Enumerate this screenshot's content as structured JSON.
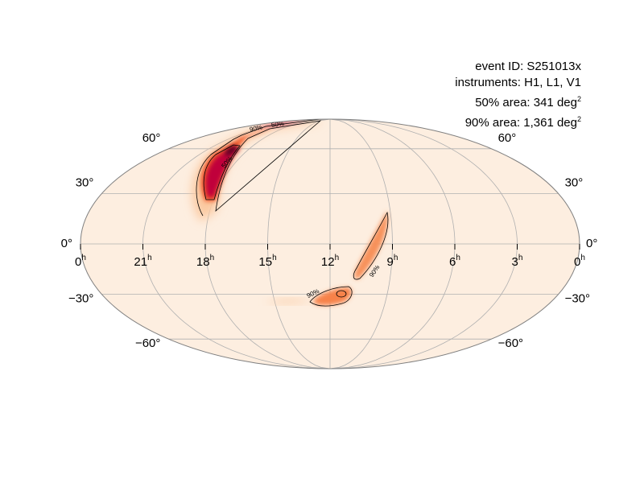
{
  "chart_data": {
    "type": "skymap",
    "projection": "mollweide",
    "annotations": {
      "event_id": "event ID: S251013x",
      "instruments": "instruments: H1, L1, V1",
      "area50_prefix": "50% area: 341 deg",
      "area90_prefix": "90% area: 1,361 deg",
      "area_exp": "2"
    },
    "ra_ticks": [
      {
        "hours": 24,
        "label": "0",
        "unit": "h"
      },
      {
        "hours": 21,
        "label": "21",
        "unit": "h"
      },
      {
        "hours": 18,
        "label": "18",
        "unit": "h"
      },
      {
        "hours": 15,
        "label": "15",
        "unit": "h"
      },
      {
        "hours": 12,
        "label": "12",
        "unit": "h"
      },
      {
        "hours": 9,
        "label": "9",
        "unit": "h"
      },
      {
        "hours": 6,
        "label": "6",
        "unit": "h"
      },
      {
        "hours": 3,
        "label": "3",
        "unit": "h"
      },
      {
        "hours": 0,
        "label": "0",
        "unit": "h"
      }
    ],
    "dec_ticks": [
      {
        "deg": 60,
        "label": "60°"
      },
      {
        "deg": 30,
        "label": "30°"
      },
      {
        "deg": 0,
        "label": "0°"
      },
      {
        "deg": -30,
        "label": "−30°"
      },
      {
        "deg": -60,
        "label": "−60°"
      }
    ],
    "contour_labels": [
      "90%",
      "50%",
      "50%",
      "90%",
      "90%"
    ],
    "contour_levels": [
      "50%",
      "90%"
    ],
    "grid": true,
    "colormap": "cylon",
    "colors": {
      "background": "#fdeee0",
      "grid": "#b0b0b0",
      "frame": "#808080",
      "low": "#fbb57f",
      "mid": "#f25a2a",
      "high": "#c0003a",
      "peak": "#5a0020"
    }
  }
}
